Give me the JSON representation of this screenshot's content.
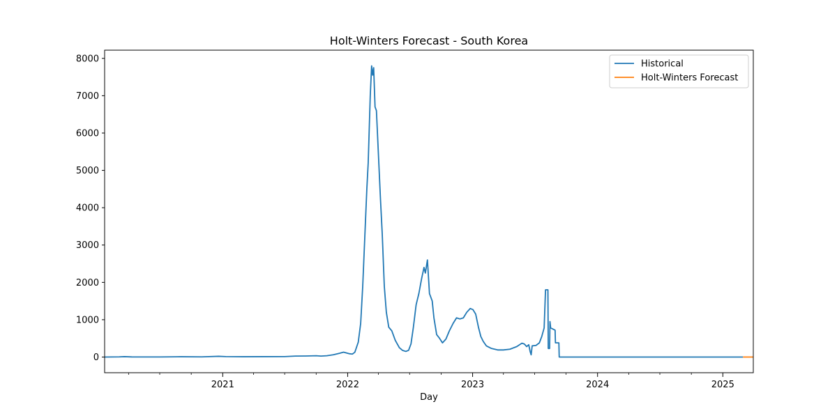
{
  "chart_data": {
    "type": "line",
    "title": "Holt-Winters Forecast - South Korea",
    "xlabel": "Day",
    "ylabel": "",
    "x_range": [
      "2020-01-22",
      "2025-03-31"
    ],
    "ylim": [
      -420,
      8220
    ],
    "y_ticks": [
      0,
      1000,
      2000,
      3000,
      4000,
      5000,
      6000,
      7000,
      8000
    ],
    "x_major_ticks": [
      {
        "date": "2021-01-01",
        "label": "2021"
      },
      {
        "date": "2022-01-01",
        "label": "2022"
      },
      {
        "date": "2023-01-01",
        "label": "2023"
      },
      {
        "date": "2024-01-01",
        "label": "2024"
      },
      {
        "date": "2025-01-01",
        "label": "2025"
      }
    ],
    "grid": false,
    "legend": "top-right",
    "series": [
      {
        "name": "Historical",
        "color": "#1f77b4",
        "points": [
          [
            "2020-01-22",
            0
          ],
          [
            "2020-03-05",
            5
          ],
          [
            "2020-03-20",
            10
          ],
          [
            "2020-04-10",
            3
          ],
          [
            "2020-07-01",
            2
          ],
          [
            "2020-09-01",
            8
          ],
          [
            "2020-11-01",
            5
          ],
          [
            "2020-12-20",
            20
          ],
          [
            "2021-01-10",
            12
          ],
          [
            "2021-03-01",
            8
          ],
          [
            "2021-05-01",
            10
          ],
          [
            "2021-07-01",
            12
          ],
          [
            "2021-08-01",
            25
          ],
          [
            "2021-09-01",
            28
          ],
          [
            "2021-10-01",
            35
          ],
          [
            "2021-10-15",
            25
          ],
          [
            "2021-11-01",
            35
          ],
          [
            "2021-11-20",
            60
          ],
          [
            "2021-12-08",
            100
          ],
          [
            "2021-12-20",
            130
          ],
          [
            "2022-01-05",
            90
          ],
          [
            "2022-01-15",
            80
          ],
          [
            "2022-01-22",
            130
          ],
          [
            "2022-02-01",
            400
          ],
          [
            "2022-02-08",
            900
          ],
          [
            "2022-02-14",
            1900
          ],
          [
            "2022-02-20",
            3200
          ],
          [
            "2022-02-26",
            4500
          ],
          [
            "2022-03-02",
            5200
          ],
          [
            "2022-03-08",
            7000
          ],
          [
            "2022-03-12",
            7800
          ],
          [
            "2022-03-15",
            7550
          ],
          [
            "2022-03-18",
            7750
          ],
          [
            "2022-03-22",
            6700
          ],
          [
            "2022-03-26",
            6600
          ],
          [
            "2022-04-01",
            5400
          ],
          [
            "2022-04-07",
            4200
          ],
          [
            "2022-04-12",
            3300
          ],
          [
            "2022-04-18",
            1900
          ],
          [
            "2022-04-24",
            1200
          ],
          [
            "2022-05-01",
            800
          ],
          [
            "2022-05-10",
            700
          ],
          [
            "2022-05-20",
            450
          ],
          [
            "2022-06-01",
            250
          ],
          [
            "2022-06-10",
            180
          ],
          [
            "2022-06-20",
            150
          ],
          [
            "2022-06-28",
            180
          ],
          [
            "2022-07-05",
            350
          ],
          [
            "2022-07-12",
            800
          ],
          [
            "2022-07-20",
            1400
          ],
          [
            "2022-07-28",
            1700
          ],
          [
            "2022-08-05",
            2100
          ],
          [
            "2022-08-12",
            2400
          ],
          [
            "2022-08-16",
            2250
          ],
          [
            "2022-08-22",
            2600
          ],
          [
            "2022-08-28",
            1700
          ],
          [
            "2022-09-05",
            1500
          ],
          [
            "2022-09-10",
            1050
          ],
          [
            "2022-09-18",
            600
          ],
          [
            "2022-09-25",
            520
          ],
          [
            "2022-10-05",
            380
          ],
          [
            "2022-10-15",
            480
          ],
          [
            "2022-10-25",
            700
          ],
          [
            "2022-11-05",
            900
          ],
          [
            "2022-11-15",
            1050
          ],
          [
            "2022-11-25",
            1020
          ],
          [
            "2022-12-05",
            1050
          ],
          [
            "2022-12-15",
            1200
          ],
          [
            "2022-12-25",
            1300
          ],
          [
            "2023-01-02",
            1270
          ],
          [
            "2023-01-10",
            1150
          ],
          [
            "2023-01-18",
            800
          ],
          [
            "2023-01-25",
            550
          ],
          [
            "2023-02-01",
            420
          ],
          [
            "2023-02-10",
            300
          ],
          [
            "2023-02-25",
            230
          ],
          [
            "2023-03-15",
            190
          ],
          [
            "2023-04-01",
            190
          ],
          [
            "2023-04-20",
            210
          ],
          [
            "2023-05-10",
            280
          ],
          [
            "2023-05-25",
            370
          ],
          [
            "2023-06-01",
            350
          ],
          [
            "2023-06-08",
            280
          ],
          [
            "2023-06-14",
            330
          ],
          [
            "2023-06-18",
            150
          ],
          [
            "2023-06-21",
            60
          ],
          [
            "2023-06-24",
            300
          ],
          [
            "2023-07-05",
            310
          ],
          [
            "2023-07-15",
            380
          ],
          [
            "2023-07-22",
            550
          ],
          [
            "2023-07-29",
            780
          ],
          [
            "2023-08-02",
            1800
          ],
          [
            "2023-08-09",
            1800
          ],
          [
            "2023-08-10",
            230
          ],
          [
            "2023-08-14",
            230
          ],
          [
            "2023-08-15",
            950
          ],
          [
            "2023-08-17",
            780
          ],
          [
            "2023-08-30",
            720
          ],
          [
            "2023-08-31",
            380
          ],
          [
            "2023-09-10",
            380
          ],
          [
            "2023-09-11",
            0
          ],
          [
            "2025-03-01",
            0
          ]
        ]
      },
      {
        "name": "Holt-Winters Forecast",
        "color": "#ff7f0e",
        "points": [
          [
            "2025-03-01",
            0
          ],
          [
            "2025-03-31",
            0
          ]
        ]
      }
    ]
  }
}
